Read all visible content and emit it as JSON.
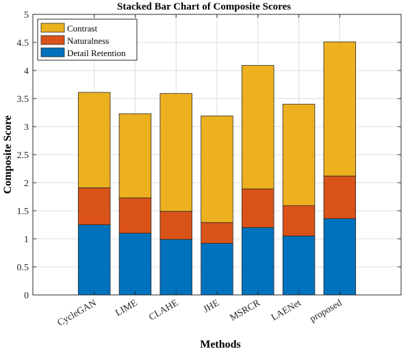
{
  "chart_data": {
    "type": "bar",
    "stacked": true,
    "title": "Stacked Bar Chart of Composite Scores",
    "xlabel": "Methods",
    "ylabel": "Composite Score",
    "categories": [
      "CycleGAN",
      "LIME",
      "CLAHE",
      "JHE",
      "MSRCR",
      "LAENet",
      "proposed"
    ],
    "series": [
      {
        "name": "Detail Retention",
        "color": "#0072BD",
        "values": [
          1.25,
          1.1,
          0.99,
          0.92,
          1.2,
          1.05,
          1.36
        ]
      },
      {
        "name": "Naturalness",
        "color": "#D95319",
        "values": [
          0.66,
          0.63,
          0.5,
          0.37,
          0.69,
          0.54,
          0.76
        ]
      },
      {
        "name": "Contrast",
        "color": "#EDB120",
        "values": [
          1.7,
          1.5,
          2.1,
          1.9,
          2.2,
          1.81,
          2.39
        ]
      }
    ],
    "ylim": [
      0,
      5
    ],
    "yticks": [
      "0",
      "0.5",
      "1",
      "1.5",
      "2",
      "2.5",
      "3",
      "3.5",
      "4",
      "4.5",
      "5"
    ],
    "grid": true,
    "legend_position": "top-left",
    "legend_order": [
      "Contrast",
      "Naturalness",
      "Detail Retention"
    ]
  }
}
